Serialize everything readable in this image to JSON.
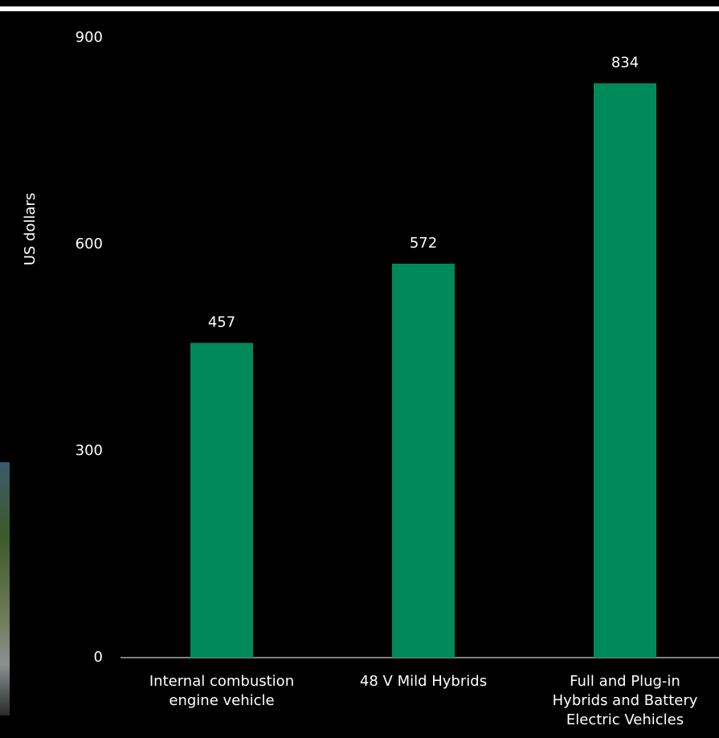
{
  "chart_data": {
    "type": "bar",
    "y_label": "US dollars",
    "categories": [
      "Internal combustion\nengine vehicle",
      "48 V Mild Hybrids",
      "Full and Plug-in\nHybrids and Battery\nElectric Vehicles"
    ],
    "values": [
      457,
      572,
      834
    ],
    "color": "#008a5b",
    "ylim": [
      0,
      900
    ],
    "yticks": [
      0,
      300,
      600,
      900
    ],
    "grid": false
  }
}
